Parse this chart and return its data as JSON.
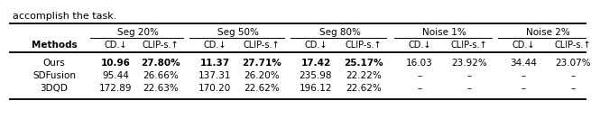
{
  "title_text": "accomplish the task.",
  "col_groups": [
    "Seg 20%",
    "Seg 50%",
    "Seg 80%",
    "Noise 1%",
    "Noise 2%"
  ],
  "sub_headers": [
    "CD.↓",
    "CLIP-s.↑",
    "CD.↓",
    "CLIP-s.↑",
    "CD.↓",
    "CLIP-s.↑",
    "CD.↓",
    "CLIP-s.↑",
    "CD.↓",
    "CLIP-s.↑"
  ],
  "methods": [
    "Ours",
    "SDFusion",
    "3DQD"
  ],
  "data": [
    [
      "10.96",
      "27.80%",
      "11.37",
      "27.71%",
      "17.42",
      "25.17%",
      "16.03",
      "23.92%",
      "34.44",
      "23.07%"
    ],
    [
      "95.44",
      "26.66%",
      "137.31",
      "26.20%",
      "235.98",
      "22.22%",
      "–",
      "–",
      "–",
      "–"
    ],
    [
      "172.89",
      "22.63%",
      "170.20",
      "22.62%",
      "196.12",
      "22.62%",
      "–",
      "–",
      "–",
      "–"
    ]
  ],
  "bold_row0": [
    true,
    true,
    true,
    true,
    true,
    true,
    false,
    false,
    false,
    false
  ],
  "background_color": "#ffffff",
  "font_size": 7.5
}
